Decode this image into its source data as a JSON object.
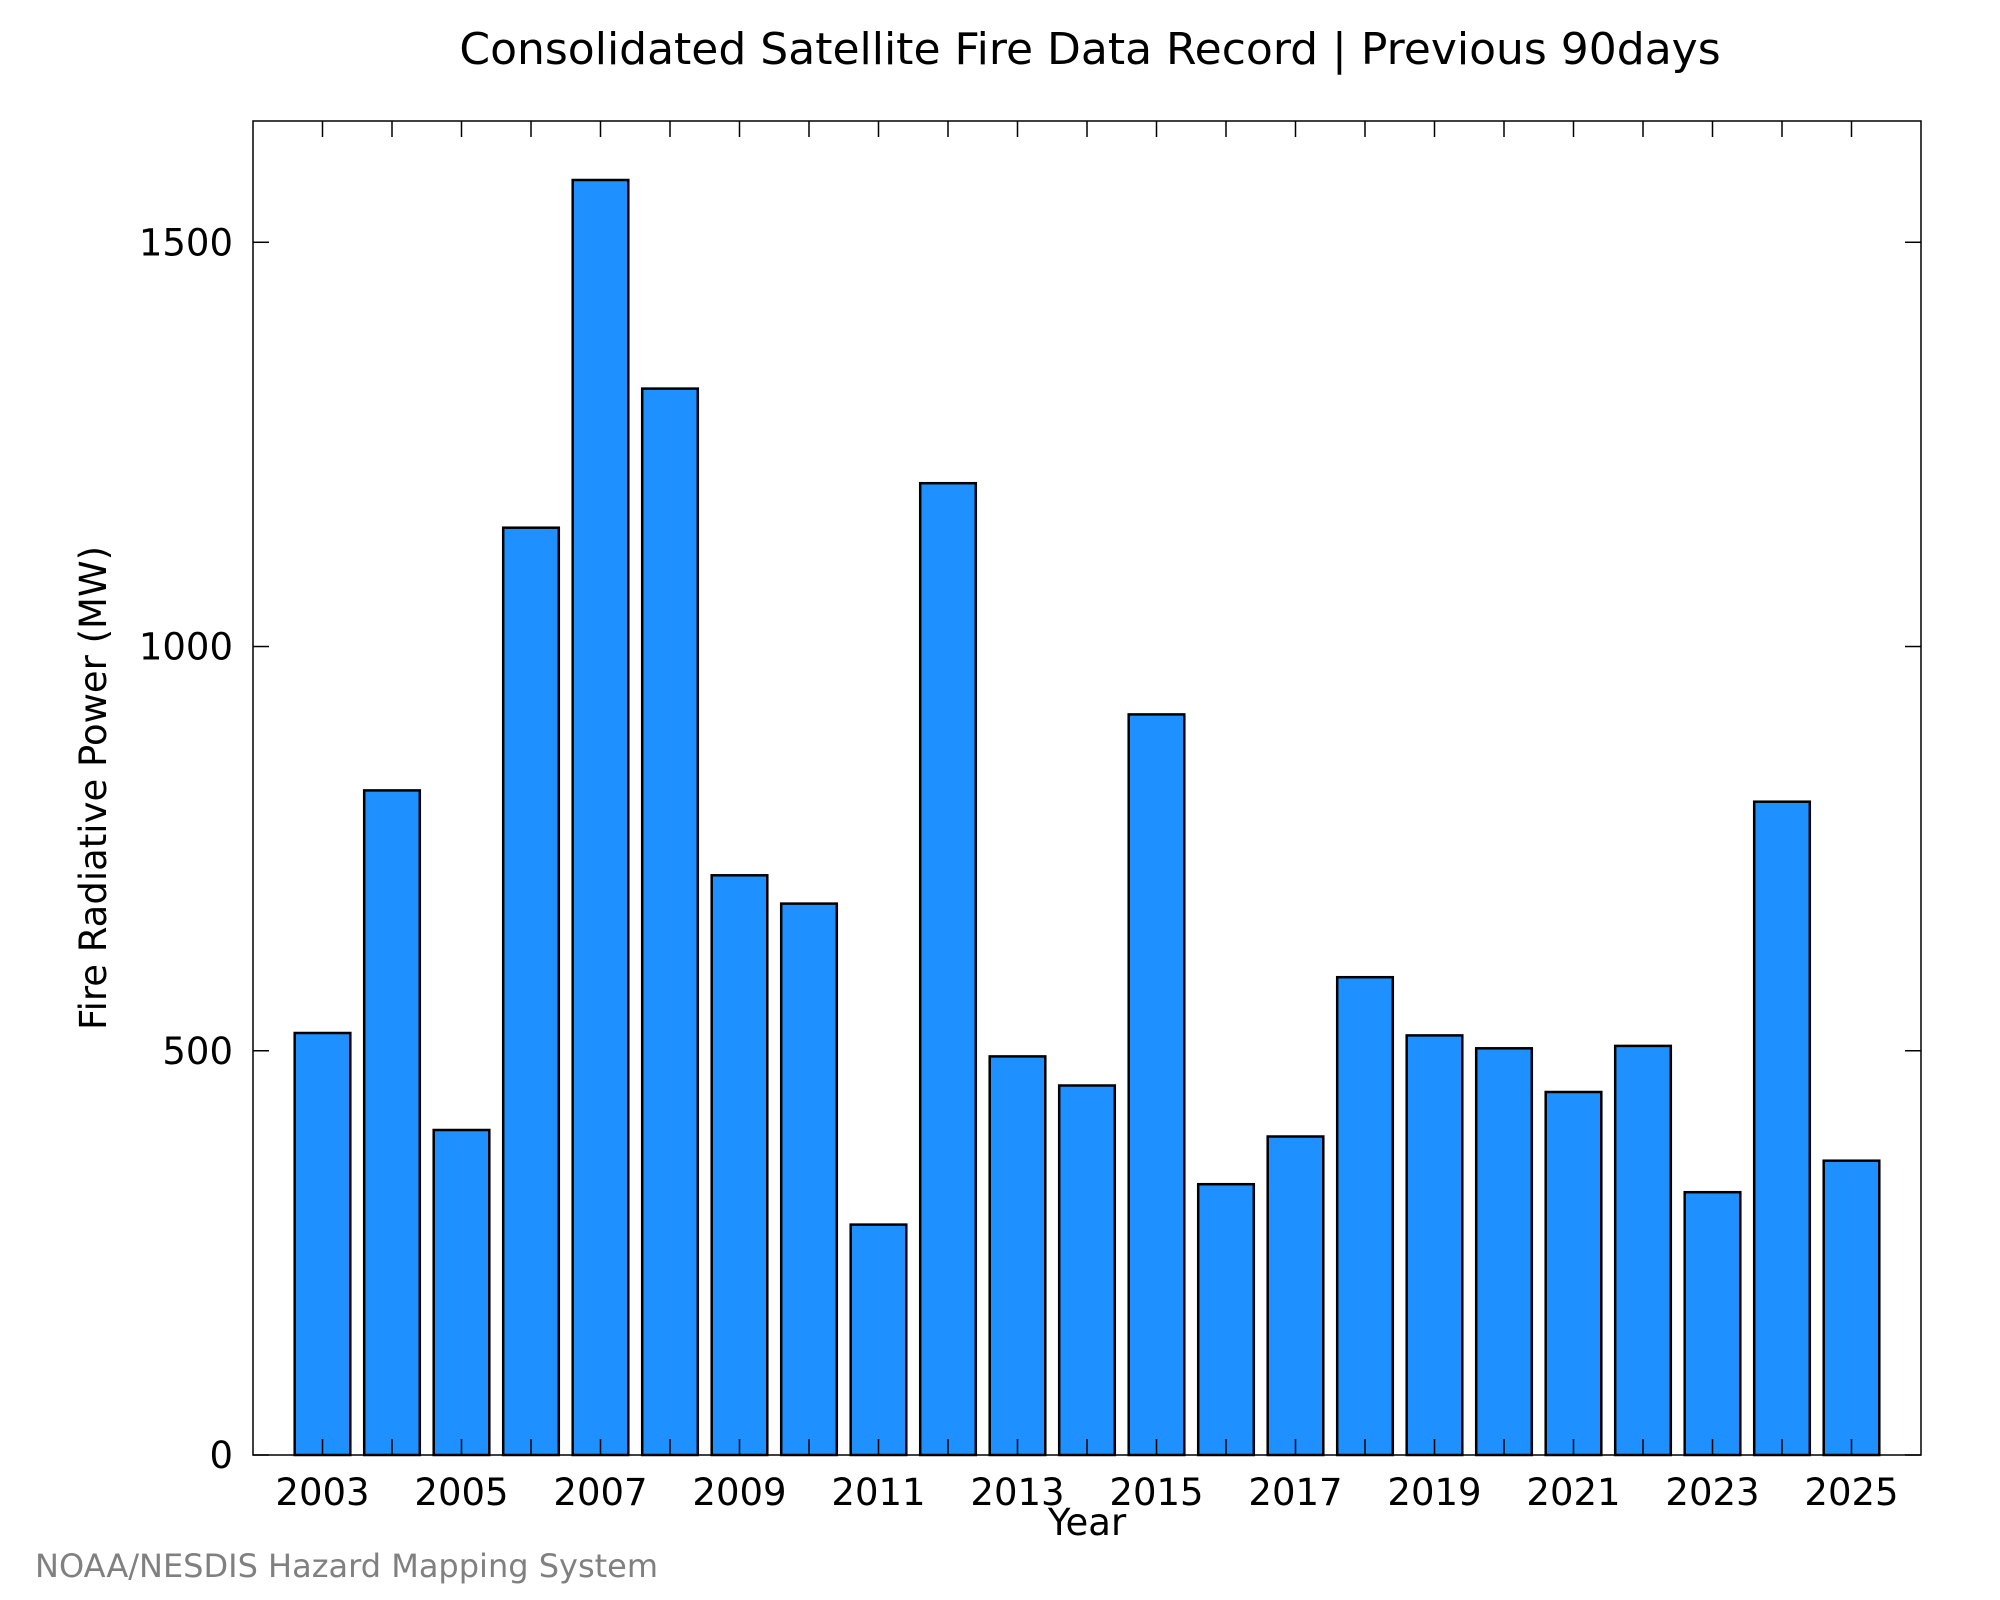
{
  "chart_data": {
    "type": "bar",
    "title": "Consolidated Satellite Fire Data Record | Previous 90days",
    "xlabel": "Year",
    "ylabel": "Fire Radiative Power (MW)",
    "categories": [
      "2003",
      "2004",
      "2005",
      "2006",
      "2007",
      "2008",
      "2009",
      "2010",
      "2011",
      "2012",
      "2013",
      "2014",
      "2015",
      "2016",
      "2017",
      "2018",
      "2019",
      "2020",
      "2021",
      "2022",
      "2023",
      "2024",
      "2025"
    ],
    "values": [
      522,
      822,
      402,
      1147,
      1577,
      1319,
      717,
      682,
      285,
      1202,
      493,
      457,
      916,
      335,
      394,
      591,
      519,
      503,
      449,
      506,
      325,
      808,
      364
    ],
    "ylim": [
      0,
      1650
    ],
    "yticks": [
      0,
      500,
      1000,
      1500
    ],
    "xtick_labels": [
      "2003",
      "2005",
      "2007",
      "2009",
      "2011",
      "2013",
      "2015",
      "2017",
      "2019",
      "2021",
      "2023",
      "2025"
    ],
    "bar_color": "#1e90ff",
    "bar_edge_color": "#000000",
    "grid": false,
    "legend": "none"
  },
  "credit": "NOAA/NESDIS Hazard Mapping System"
}
